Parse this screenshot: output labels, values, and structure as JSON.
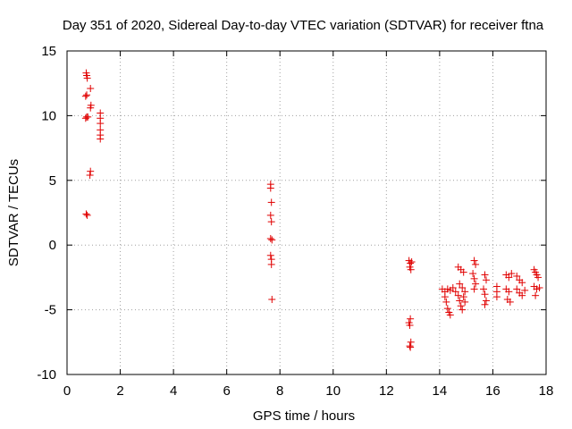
{
  "chart_data": {
    "type": "scatter",
    "title": "Day 351 of 2020, Sidereal Day-to-day VTEC variation (SDTVAR) for receiver ftna",
    "xlabel": "GPS time / hours",
    "ylabel": "SDTVAR / TECUs",
    "xlim": [
      0,
      18
    ],
    "ylim": [
      -10,
      15
    ],
    "xticks": [
      0,
      2,
      4,
      6,
      8,
      10,
      12,
      14,
      16,
      18
    ],
    "yticks": [
      -10,
      -5,
      0,
      5,
      10,
      15
    ],
    "xtick_labels": [
      "0",
      "2",
      "4",
      "6",
      "8",
      "10",
      "12",
      "14",
      "16",
      "18"
    ],
    "ytick_labels": [
      "-10",
      "-5",
      "0",
      "5",
      "10",
      "15"
    ],
    "grid": true,
    "marker": "+",
    "series": [
      {
        "name": "ftna SDTVAR",
        "color": "#e00000",
        "points": [
          {
            "x": 0.72,
            "y": 13.3
          },
          {
            "x": 0.74,
            "y": 13.1
          },
          {
            "x": 0.76,
            "y": 12.9
          },
          {
            "x": 0.7,
            "y": 11.5
          },
          {
            "x": 0.74,
            "y": 11.6
          },
          {
            "x": 0.88,
            "y": 12.1
          },
          {
            "x": 0.9,
            "y": 10.8
          },
          {
            "x": 0.88,
            "y": 10.6
          },
          {
            "x": 0.7,
            "y": 9.8
          },
          {
            "x": 0.74,
            "y": 9.9
          },
          {
            "x": 0.78,
            "y": 9.9
          },
          {
            "x": 1.25,
            "y": 10.2
          },
          {
            "x": 1.25,
            "y": 9.8
          },
          {
            "x": 1.25,
            "y": 9.4
          },
          {
            "x": 1.25,
            "y": 8.9
          },
          {
            "x": 1.25,
            "y": 8.5
          },
          {
            "x": 1.25,
            "y": 8.2
          },
          {
            "x": 0.88,
            "y": 5.7
          },
          {
            "x": 0.86,
            "y": 5.4
          },
          {
            "x": 0.72,
            "y": 2.4
          },
          {
            "x": 0.76,
            "y": 2.3
          },
          {
            "x": 7.65,
            "y": 4.7
          },
          {
            "x": 7.65,
            "y": 4.4
          },
          {
            "x": 7.68,
            "y": 3.3
          },
          {
            "x": 7.65,
            "y": 2.3
          },
          {
            "x": 7.68,
            "y": 1.8
          },
          {
            "x": 7.65,
            "y": 0.5
          },
          {
            "x": 7.7,
            "y": 0.4
          },
          {
            "x": 7.65,
            "y": -0.8
          },
          {
            "x": 7.68,
            "y": -1.1
          },
          {
            "x": 7.68,
            "y": -1.5
          },
          {
            "x": 7.7,
            "y": -4.2
          },
          {
            "x": 12.85,
            "y": -1.2
          },
          {
            "x": 12.9,
            "y": -1.4
          },
          {
            "x": 12.95,
            "y": -1.3
          },
          {
            "x": 12.88,
            "y": -1.7
          },
          {
            "x": 12.92,
            "y": -1.9
          },
          {
            "x": 12.9,
            "y": -5.7
          },
          {
            "x": 12.85,
            "y": -6.0
          },
          {
            "x": 12.88,
            "y": -6.2
          },
          {
            "x": 12.92,
            "y": -7.5
          },
          {
            "x": 12.88,
            "y": -7.8
          },
          {
            "x": 12.9,
            "y": -7.9
          },
          {
            "x": 14.1,
            "y": -3.4
          },
          {
            "x": 14.2,
            "y": -3.6
          },
          {
            "x": 14.3,
            "y": -3.4
          },
          {
            "x": 14.4,
            "y": -3.5
          },
          {
            "x": 14.2,
            "y": -4.0
          },
          {
            "x": 14.25,
            "y": -4.4
          },
          {
            "x": 14.3,
            "y": -4.9
          },
          {
            "x": 14.35,
            "y": -5.2
          },
          {
            "x": 14.4,
            "y": -5.4
          },
          {
            "x": 14.5,
            "y": -3.3
          },
          {
            "x": 14.6,
            "y": -3.6
          },
          {
            "x": 14.7,
            "y": -3.9
          },
          {
            "x": 14.75,
            "y": -4.3
          },
          {
            "x": 14.8,
            "y": -4.7
          },
          {
            "x": 14.85,
            "y": -5.0
          },
          {
            "x": 14.7,
            "y": -1.7
          },
          {
            "x": 14.8,
            "y": -1.9
          },
          {
            "x": 14.9,
            "y": -2.1
          },
          {
            "x": 14.75,
            "y": -3.0
          },
          {
            "x": 14.85,
            "y": -3.3
          },
          {
            "x": 14.95,
            "y": -3.6
          },
          {
            "x": 14.9,
            "y": -4.0
          },
          {
            "x": 14.95,
            "y": -4.4
          },
          {
            "x": 15.3,
            "y": -1.2
          },
          {
            "x": 15.35,
            "y": -1.5
          },
          {
            "x": 15.25,
            "y": -2.2
          },
          {
            "x": 15.3,
            "y": -2.6
          },
          {
            "x": 15.35,
            "y": -3.0
          },
          {
            "x": 15.3,
            "y": -3.4
          },
          {
            "x": 15.7,
            "y": -2.3
          },
          {
            "x": 15.75,
            "y": -2.7
          },
          {
            "x": 15.65,
            "y": -3.4
          },
          {
            "x": 15.7,
            "y": -3.8
          },
          {
            "x": 15.75,
            "y": -4.3
          },
          {
            "x": 15.7,
            "y": -4.6
          },
          {
            "x": 16.15,
            "y": -3.2
          },
          {
            "x": 16.15,
            "y": -3.6
          },
          {
            "x": 16.15,
            "y": -4.0
          },
          {
            "x": 16.5,
            "y": -2.3
          },
          {
            "x": 16.6,
            "y": -2.5
          },
          {
            "x": 16.7,
            "y": -2.2
          },
          {
            "x": 16.5,
            "y": -3.4
          },
          {
            "x": 16.6,
            "y": -3.6
          },
          {
            "x": 16.55,
            "y": -4.2
          },
          {
            "x": 16.65,
            "y": -4.4
          },
          {
            "x": 16.9,
            "y": -2.4
          },
          {
            "x": 17.0,
            "y": -2.7
          },
          {
            "x": 17.1,
            "y": -2.9
          },
          {
            "x": 16.9,
            "y": -3.4
          },
          {
            "x": 17.0,
            "y": -3.7
          },
          {
            "x": 17.1,
            "y": -3.9
          },
          {
            "x": 17.2,
            "y": -3.5
          },
          {
            "x": 17.55,
            "y": -1.9
          },
          {
            "x": 17.6,
            "y": -2.1
          },
          {
            "x": 17.65,
            "y": -2.3
          },
          {
            "x": 17.7,
            "y": -2.5
          },
          {
            "x": 17.55,
            "y": -3.2
          },
          {
            "x": 17.65,
            "y": -3.4
          },
          {
            "x": 17.75,
            "y": -3.3
          },
          {
            "x": 17.6,
            "y": -3.9
          }
        ]
      }
    ]
  }
}
